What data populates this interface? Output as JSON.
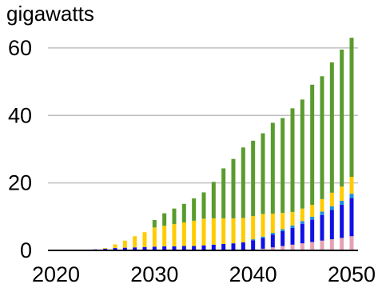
{
  "chart_data": {
    "type": "bar",
    "stacked": true,
    "ylabel": "gigawatts",
    "ylim": [
      0,
      64
    ],
    "yticks": [
      0,
      20,
      40,
      60
    ],
    "x_tick_labels": [
      "2020",
      "2030",
      "2040",
      "2050"
    ],
    "grid": true,
    "legend": "none",
    "x": [
      2024,
      2025,
      2026,
      2027,
      2028,
      2029,
      2030,
      2031,
      2032,
      2033,
      2034,
      2035,
      2036,
      2037,
      2038,
      2039,
      2040,
      2041,
      2042,
      2043,
      2044,
      2045,
      2046,
      2047,
      2048,
      2049,
      2050
    ],
    "series": [
      {
        "color": "#e6a2b4",
        "values": [
          0,
          0,
          0,
          0,
          0,
          0,
          0,
          0,
          0,
          0,
          0,
          0,
          0,
          0,
          0,
          0,
          0.2,
          0.5,
          0.9,
          1.3,
          1.7,
          2.1,
          2.5,
          2.9,
          3.3,
          3.7,
          4.2
        ]
      },
      {
        "color": "#1010e6",
        "values": [
          0.3,
          0.5,
          0.7,
          0.8,
          0.9,
          1.0,
          1.1,
          1.2,
          1.2,
          1.3,
          1.3,
          1.5,
          1.7,
          1.9,
          2.1,
          2.4,
          2.8,
          3.2,
          3.8,
          4.4,
          5.0,
          5.8,
          6.6,
          7.6,
          8.7,
          9.8,
          11.3
        ]
      },
      {
        "color": "#1e8fe0",
        "values": [
          0,
          0,
          0,
          0,
          0,
          0,
          0,
          0,
          0,
          0,
          0,
          0,
          0,
          0,
          0,
          0,
          0.3,
          0.4,
          0.5,
          0.6,
          0.7,
          0.8,
          0.9,
          1.0,
          1.1,
          1.2,
          1.3
        ]
      },
      {
        "color": "#ffcc00",
        "values": [
          0,
          0.2,
          1.1,
          2.1,
          3.3,
          4.4,
          5.7,
          6.1,
          6.6,
          7.0,
          7.5,
          7.9,
          7.8,
          7.6,
          7.4,
          7.2,
          6.9,
          6.7,
          5.7,
          4.8,
          4.0,
          3.7,
          3.5,
          3.7,
          4.0,
          4.2,
          5.0
        ]
      },
      {
        "color": "#5a9b2e",
        "values": [
          0,
          0,
          0,
          0,
          0,
          0,
          2.2,
          3.7,
          4.6,
          5.5,
          6.6,
          7.8,
          10.8,
          14.8,
          17.6,
          20.9,
          22.3,
          23.9,
          26.9,
          28.1,
          30.7,
          32.3,
          35.6,
          36.4,
          38.6,
          40.6,
          41.2
        ]
      }
    ]
  }
}
